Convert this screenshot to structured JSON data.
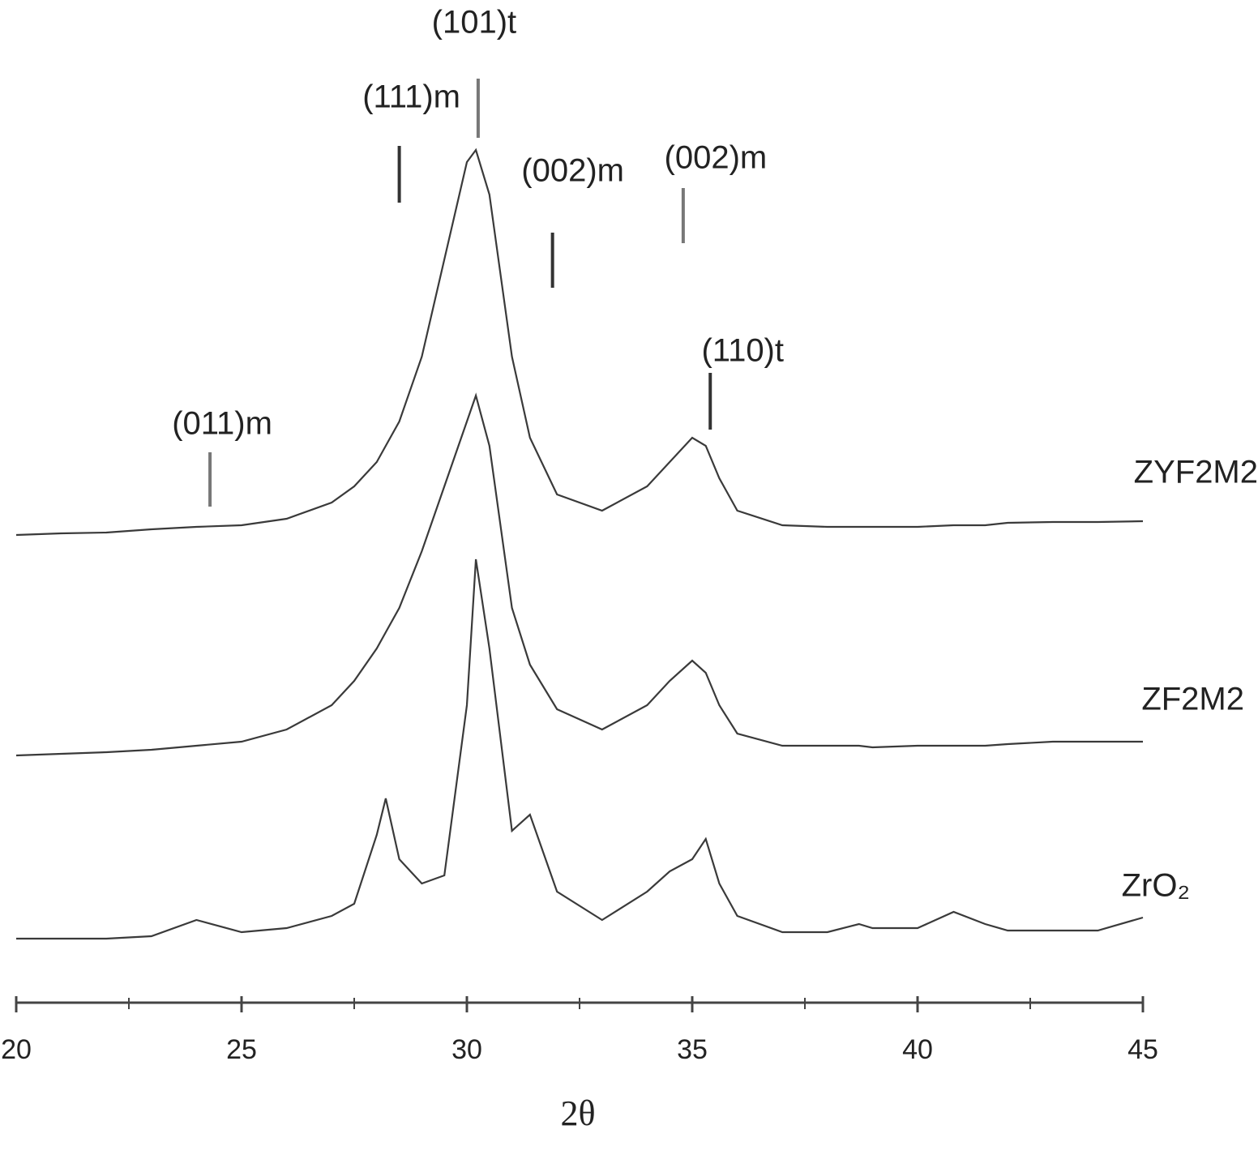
{
  "chart_data": {
    "type": "line",
    "xlabel": "2θ",
    "x": [
      20,
      21,
      22,
      23,
      24,
      25,
      26,
      27,
      27.5,
      28,
      28.2,
      28.5,
      29,
      29.5,
      30,
      30.2,
      30.5,
      31,
      31.4,
      32,
      33,
      34,
      34.5,
      35,
      35.3,
      35.6,
      36,
      37,
      38,
      38.7,
      39,
      40,
      40.8,
      41.5,
      42,
      43,
      44,
      45
    ],
    "series": [
      {
        "name": "ZYF2M2",
        "color": "#3a3a3a",
        "values": [
          540,
          542,
          543,
          547,
          550,
          552,
          560,
          580,
          600,
          630,
          650,
          680,
          760,
          880,
          1000,
          1015,
          960,
          760,
          660,
          590,
          570,
          600,
          630,
          660,
          650,
          610,
          570,
          552,
          550,
          550,
          550,
          550,
          552,
          552,
          555,
          556,
          556,
          557
        ]
      },
      {
        "name": "ZF2M2",
        "color": "#3a3a3a",
        "values": [
          268,
          270,
          272,
          275,
          280,
          285,
          300,
          330,
          360,
          400,
          420,
          450,
          520,
          600,
          680,
          712,
          650,
          450,
          380,
          325,
          300,
          330,
          360,
          385,
          370,
          330,
          295,
          280,
          280,
          280,
          278,
          280,
          280,
          280,
          282,
          285,
          285,
          285
        ]
      },
      {
        "name": "ZrO₂",
        "color": "#3a3a3a",
        "values": [
          42,
          42,
          42,
          45,
          65,
          50,
          55,
          70,
          85,
          170,
          215,
          140,
          110,
          120,
          330,
          510,
          400,
          175,
          195,
          100,
          65,
          100,
          125,
          140,
          165,
          110,
          70,
          50,
          50,
          60,
          55,
          55,
          75,
          60,
          52,
          52,
          52,
          68
        ]
      }
    ],
    "annotations": [
      {
        "text": "(011)m",
        "x": 24.3
      },
      {
        "text": "(111)m",
        "x": 28.5
      },
      {
        "text": "(101)t",
        "x": 30.25
      },
      {
        "text": "(002)m",
        "x": 31.9
      },
      {
        "text": "(002)m",
        "x": 34.8
      },
      {
        "text": "(110)t",
        "x": 35.4
      }
    ],
    "xlim": [
      20,
      45
    ],
    "xticks": [
      20,
      25,
      30,
      35,
      40,
      45
    ],
    "xminorticks": [
      22.5,
      27.5,
      32.5,
      37.5,
      42.5
    ],
    "ylim": [
      0,
      1200
    ]
  }
}
